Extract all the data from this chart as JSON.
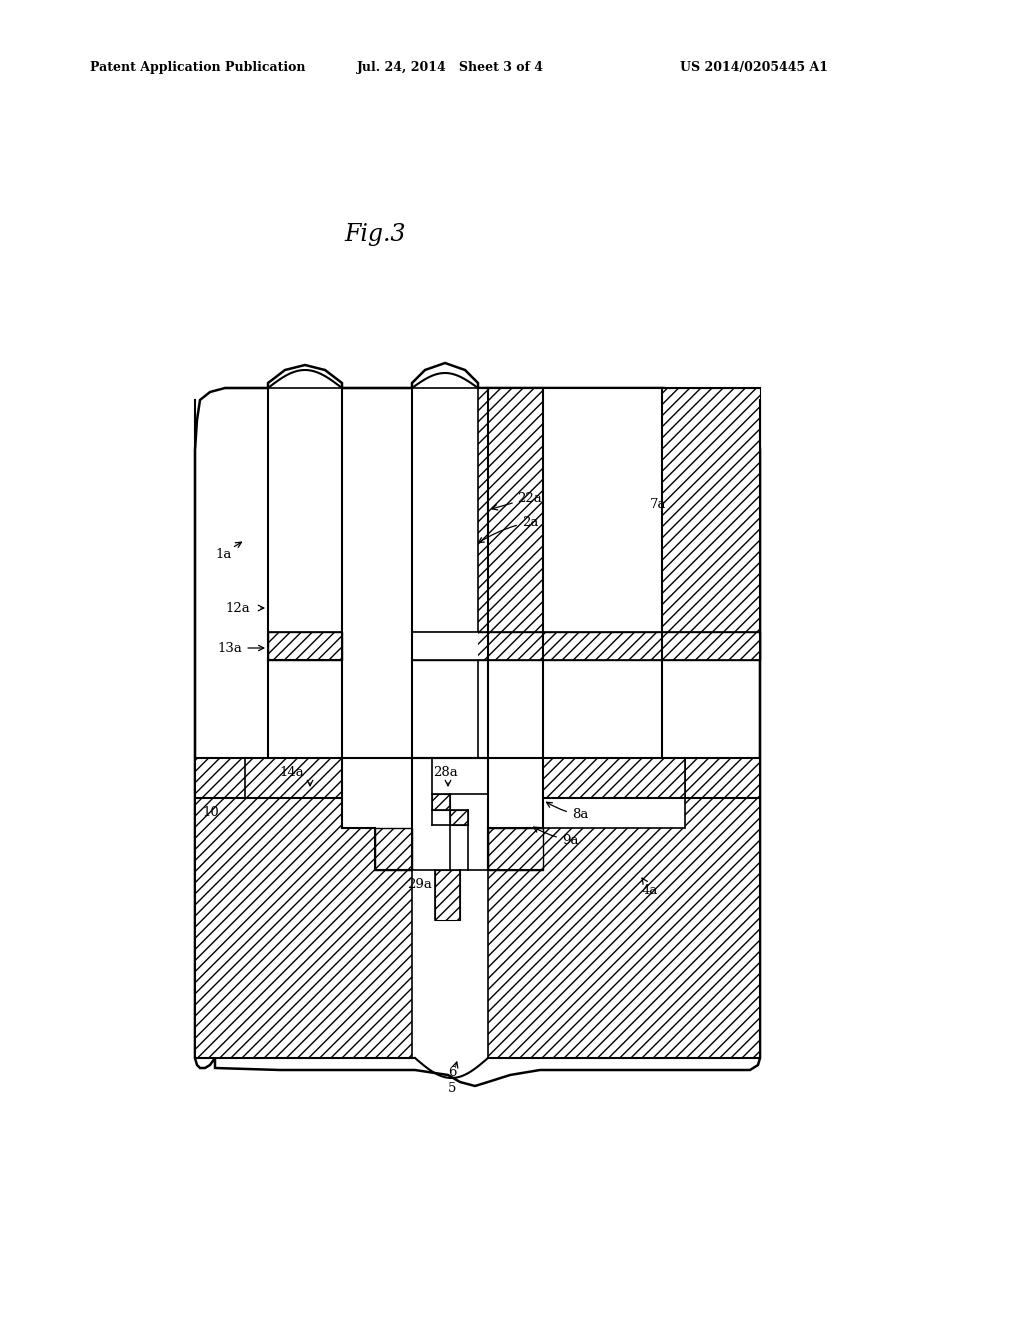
{
  "background_color": "#ffffff",
  "header_left": "Patent Application Publication",
  "header_center": "Jul. 24, 2014   Sheet 3 of 4",
  "header_right": "US 2014/0205445 A1",
  "fig_label": "Fig.3",
  "line_color": "#000000"
}
